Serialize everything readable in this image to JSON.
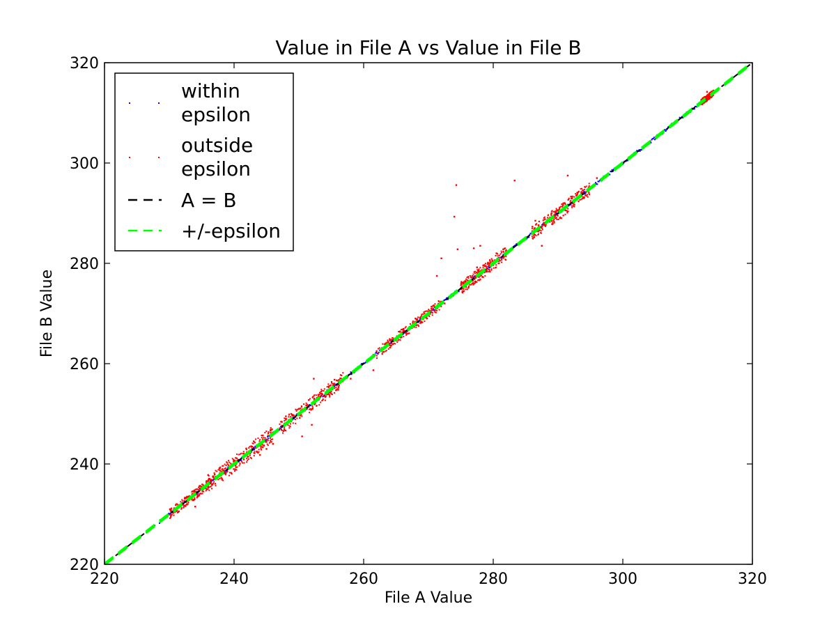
{
  "chart_data": {
    "type": "scatter",
    "title": "Value in File A vs Value in File B",
    "xlabel": "File A Value",
    "ylabel": "File B Value",
    "xlim": [
      220,
      320
    ],
    "ylim": [
      220,
      320
    ],
    "xticks": [
      "220",
      "240",
      "260",
      "280",
      "300",
      "320"
    ],
    "yticks": [
      "220",
      "240",
      "260",
      "280",
      "300",
      "320"
    ],
    "grid": false,
    "legend_position": "top-left",
    "colors": {
      "within": "#0000ff",
      "outside": "#ff0000",
      "identity": "#000000",
      "epsilon": "#00ff00"
    },
    "series": [
      {
        "name": "within epsilon",
        "kind": "points",
        "range": [
          228.5,
          314.5
        ]
      },
      {
        "name": "outside epsilon",
        "kind": "points",
        "points": [
          [
            231.0,
            231.8
          ],
          [
            232.5,
            231.6
          ],
          [
            234.0,
            231.5
          ],
          [
            236.0,
            237.8
          ],
          [
            237.0,
            237.9
          ],
          [
            240.0,
            240.6
          ],
          [
            241.5,
            240.9
          ],
          [
            242.5,
            242.1
          ],
          [
            243.5,
            242.5
          ],
          [
            244.0,
            241.8
          ],
          [
            245.0,
            243.0
          ],
          [
            246.0,
            244.0
          ],
          [
            248.0,
            249.5
          ],
          [
            249.0,
            249.8
          ],
          [
            250.0,
            251.0
          ],
          [
            250.5,
            245.5
          ],
          [
            251.5,
            251.7
          ],
          [
            252.0,
            247.8
          ],
          [
            252.3,
            257.0
          ],
          [
            253.0,
            253.8
          ],
          [
            255.5,
            256.8
          ],
          [
            258.0,
            257.0
          ],
          [
            261.5,
            258.7
          ],
          [
            262.0,
            262.5
          ],
          [
            264.0,
            263.8
          ],
          [
            266.0,
            266.8
          ],
          [
            268.0,
            269.0
          ],
          [
            270.0,
            269.8
          ],
          [
            271.3,
            277.5
          ],
          [
            272.0,
            281.0
          ],
          [
            272.5,
            272.0
          ],
          [
            274.0,
            289.3
          ],
          [
            274.3,
            295.6
          ],
          [
            274.5,
            282.8
          ],
          [
            276.0,
            276.6
          ],
          [
            277.0,
            283.0
          ],
          [
            277.5,
            279.2
          ],
          [
            278.0,
            283.5
          ],
          [
            279.5,
            280.5
          ],
          [
            280.5,
            282.0
          ],
          [
            282.0,
            282.6
          ],
          [
            283.3,
            296.5
          ],
          [
            285.0,
            284.8
          ],
          [
            286.0,
            285.8
          ],
          [
            286.5,
            288.5
          ],
          [
            287.0,
            287.6
          ],
          [
            287.5,
            283.5
          ],
          [
            288.0,
            288.8
          ],
          [
            289.0,
            290.0
          ],
          [
            290.0,
            290.6
          ],
          [
            290.5,
            289.0
          ],
          [
            291.0,
            292.0
          ],
          [
            291.5,
            297.5
          ],
          [
            292.0,
            293.3
          ],
          [
            293.0,
            294.0
          ],
          [
            294.0,
            293.0
          ],
          [
            296.0,
            297.0
          ],
          [
            313.0,
            314.2
          ]
        ]
      },
      {
        "name": "A = B",
        "kind": "line",
        "x": [
          220,
          320
        ],
        "y": [
          220,
          320
        ]
      },
      {
        "name": "+/-epsilon",
        "kind": "line",
        "x": [
          220,
          320
        ],
        "y": [
          220,
          320
        ]
      }
    ],
    "legend": [
      {
        "label_line1": "within",
        "label_line2": "epsilon",
        "kind": "dots",
        "color": "#0000ff"
      },
      {
        "label_line1": "outside",
        "label_line2": "epsilon",
        "kind": "dots",
        "color": "#ff0000"
      },
      {
        "label_line1": "A = B",
        "label_line2": "",
        "kind": "dash",
        "color": "#000000"
      },
      {
        "label_line1": "+/-epsilon",
        "label_line2": "",
        "kind": "dash",
        "color": "#00ff00"
      }
    ]
  }
}
